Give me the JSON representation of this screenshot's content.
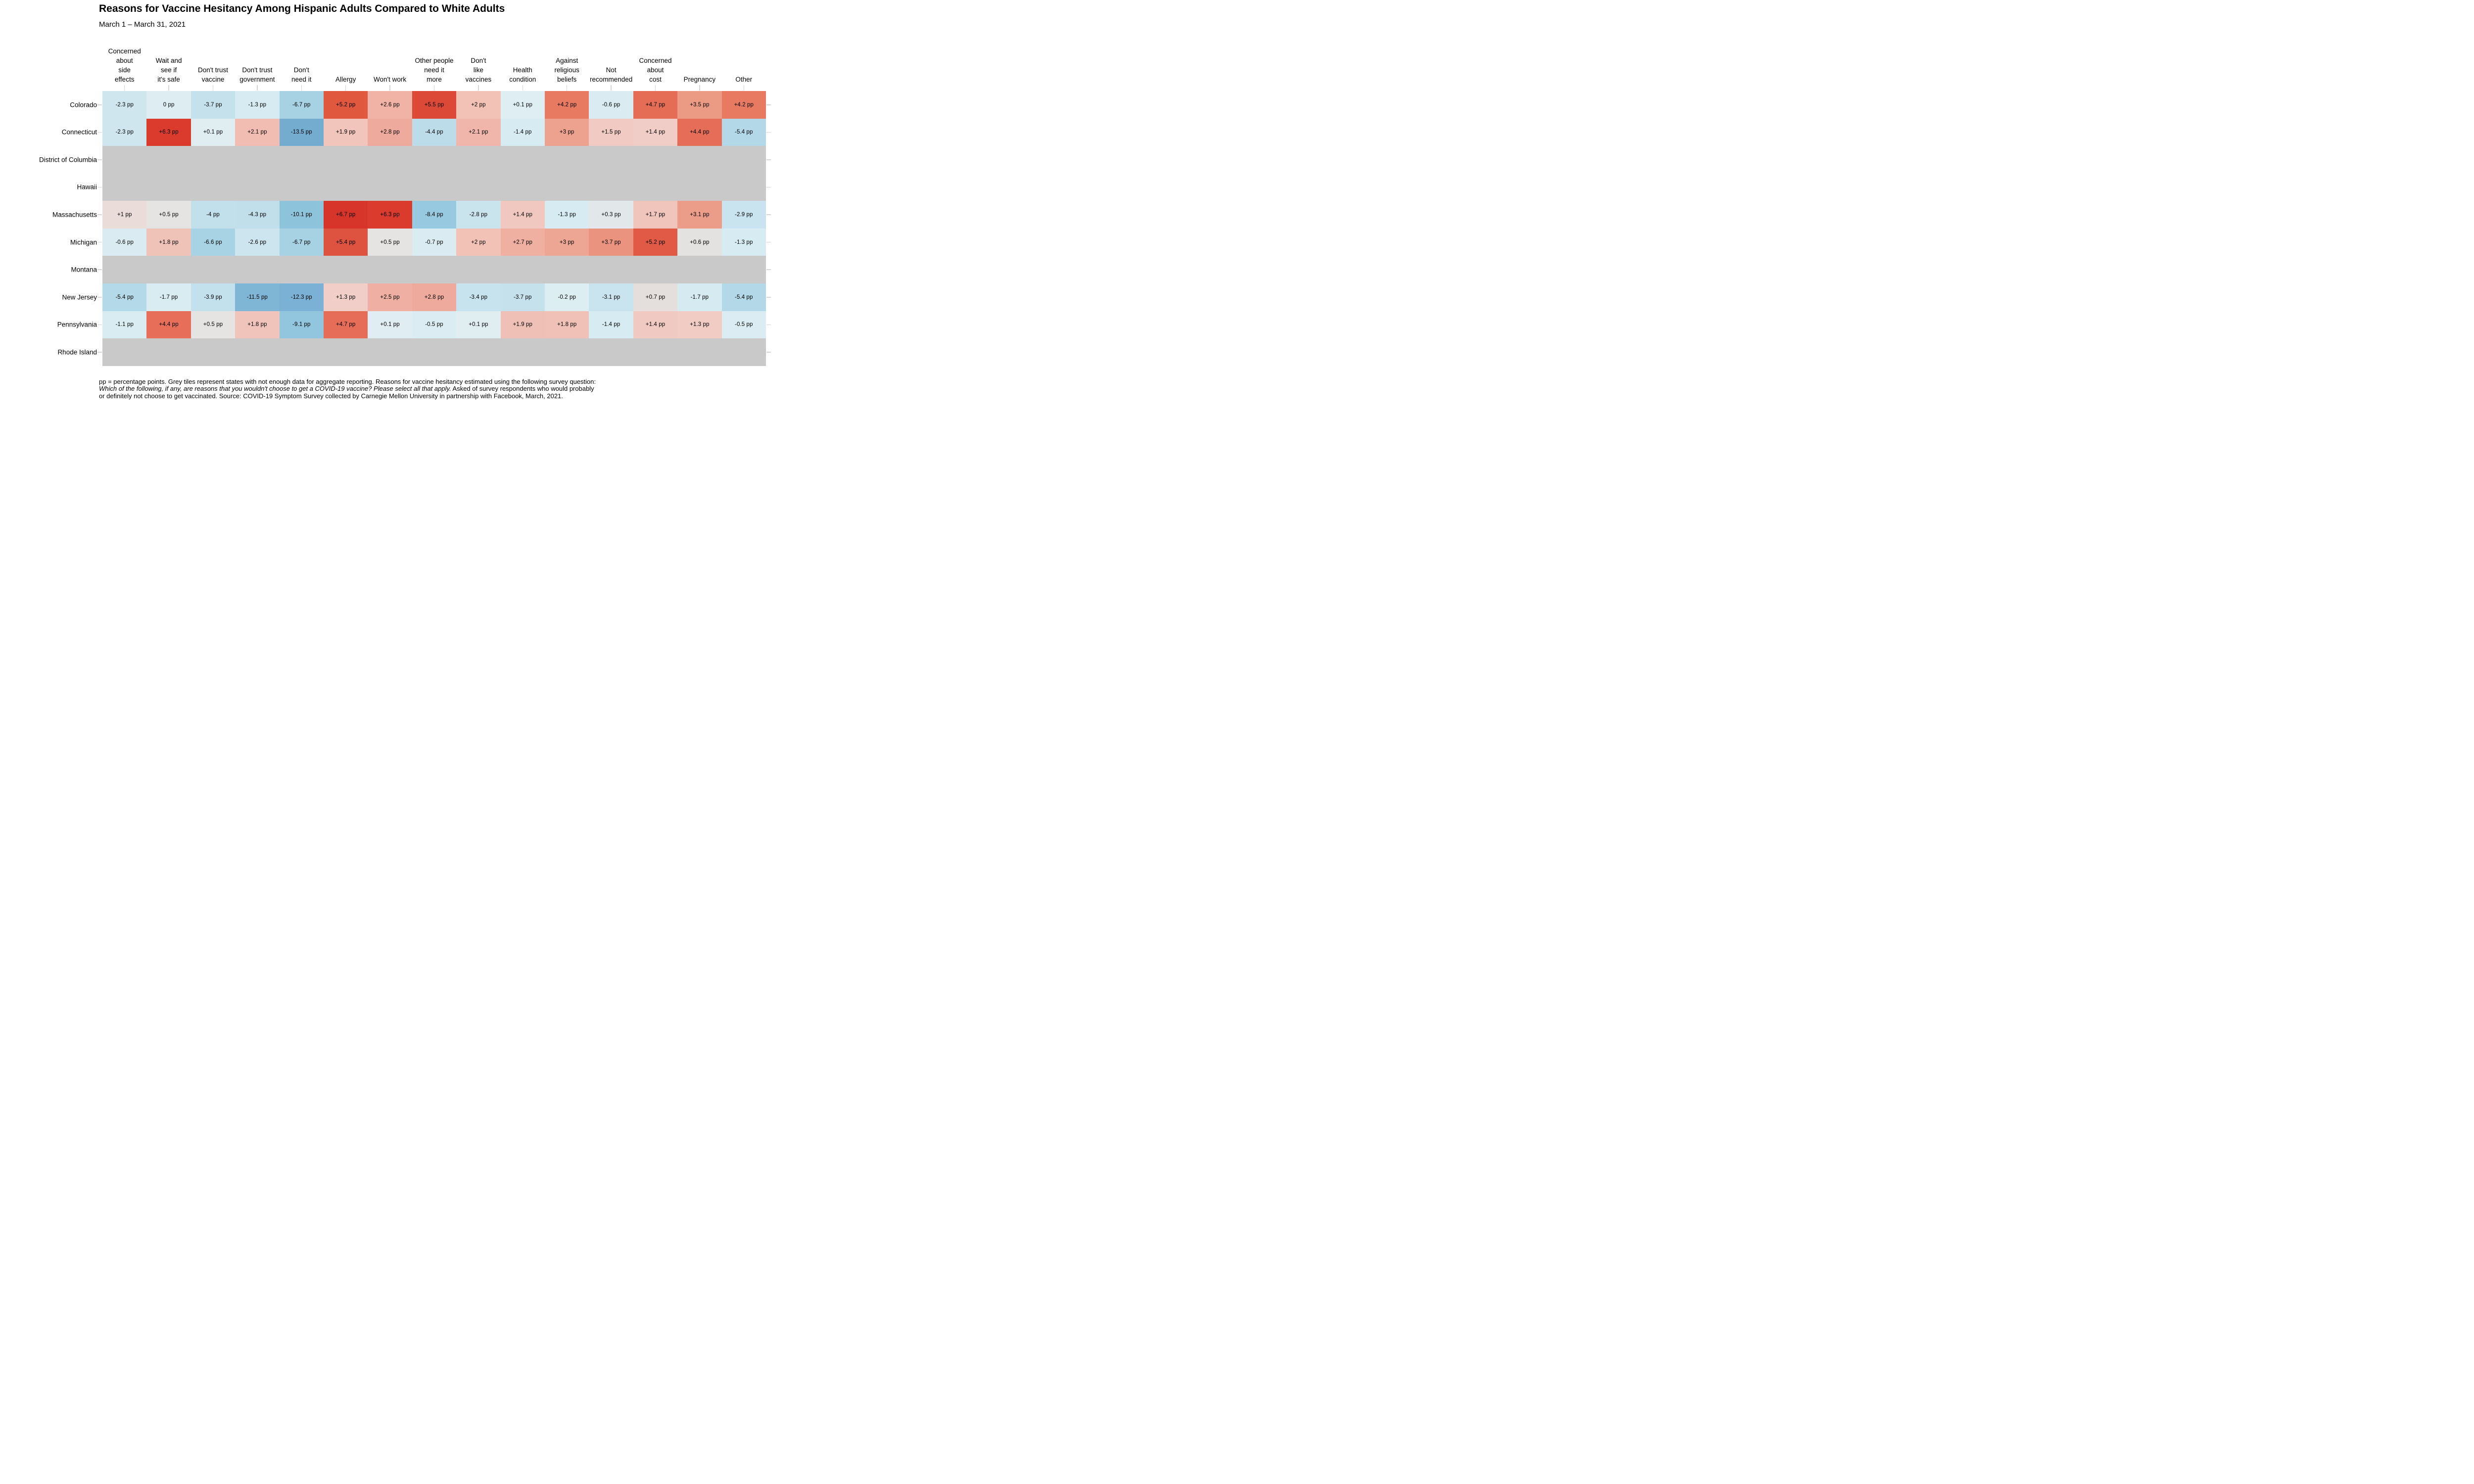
{
  "chart_data": {
    "type": "heatmap",
    "title": "Reasons for Vaccine Hesitancy Among Hispanic Adults Compared to White Adults",
    "subtitle": "March 1 – March 31, 2021",
    "unit": "pp",
    "legend_position": "none",
    "grid": "ticks-only",
    "columns": [
      "Concerned about side effects",
      "Wait and see if it's safe",
      "Don't trust vaccine",
      "Don't trust government",
      "Don't need it",
      "Allergy",
      "Won't work",
      "Other people need it more",
      "Don't like vaccines",
      "Health condition",
      "Against religious beliefs",
      "Not recommended",
      "Concerned about cost",
      "Pregnancy",
      "Other"
    ],
    "column_lines": [
      [
        "Concerned",
        "about",
        "side",
        "effects"
      ],
      [
        "Wait and",
        "see if",
        "it's safe"
      ],
      [
        "Don't trust",
        "vaccine"
      ],
      [
        "Don't trust",
        "government"
      ],
      [
        "Don't",
        "need it"
      ],
      [
        "Allergy"
      ],
      [
        "Won't work"
      ],
      [
        "Other people",
        "need it",
        "more"
      ],
      [
        "Don't",
        "like",
        "vaccines"
      ],
      [
        "Health",
        "condition"
      ],
      [
        "Against",
        "religious",
        "beliefs"
      ],
      [
        "Not",
        "recommended"
      ],
      [
        "Concerned",
        "about",
        "cost"
      ],
      [
        "Pregnancy"
      ],
      [
        "Other"
      ]
    ],
    "rows": [
      {
        "state": "Colorado",
        "missing": false,
        "values": [
          -2.3,
          0,
          -3.7,
          -1.3,
          -6.7,
          5.2,
          2.6,
          5.5,
          2,
          0.1,
          4.2,
          -0.6,
          4.7,
          3.5,
          4.2
        ],
        "labels": [
          "-2.3 pp",
          "0 pp",
          "-3.7 pp",
          "-1.3 pp",
          "-6.7 pp",
          "+5.2 pp",
          "+2.6 pp",
          "+5.5 pp",
          "+2 pp",
          "+0.1 pp",
          "+4.2 pp",
          "-0.6 pp",
          "+4.7 pp",
          "+3.5 pp",
          "+4.2 pp"
        ],
        "colors": [
          "#cfe6ef",
          "#ddedf2",
          "#c4e1ec",
          "#d6ebf2",
          "#a6d2e4",
          "#e0593f",
          "#f0b3a6",
          "#dd4937",
          "#f2c2b6",
          "#deeef3",
          "#e87a62",
          "#daecf2",
          "#e66d55",
          "#eb9b84",
          "#e87a62"
        ]
      },
      {
        "state": "Connecticut",
        "missing": false,
        "values": [
          -2.3,
          6.3,
          0.1,
          2.1,
          -13.5,
          1.9,
          2.8,
          -4.4,
          2.1,
          -1.4,
          3,
          1.5,
          1.4,
          4.4,
          -5.4
        ],
        "labels": [
          "-2.3 pp",
          "+6.3 pp",
          "+0.1 pp",
          "+2.1 pp",
          "-13.5 pp",
          "+1.9 pp",
          "+2.8 pp",
          "-4.4 pp",
          "+2.1 pp",
          "-1.4 pp",
          "+3 pp",
          "+1.5 pp",
          "+1.4 pp",
          "+4.4 pp",
          "-5.4 pp"
        ],
        "colors": [
          "#cfe6ef",
          "#da3b2c",
          "#e0eef2",
          "#f1bcb1",
          "#74accf",
          "#f2c5bc",
          "#eeab9d",
          "#bcdcea",
          "#f0b6ab",
          "#d6ebf2",
          "#eda28f",
          "#f0cac3",
          "#f1cdc7",
          "#e66e58",
          "#b3d9e8"
        ]
      },
      {
        "state": "District of Columbia",
        "missing": true,
        "values": null,
        "labels": null,
        "colors": null
      },
      {
        "state": "Hawaii",
        "missing": true,
        "values": null,
        "labels": null,
        "colors": null
      },
      {
        "state": "Massachusetts",
        "missing": false,
        "values": [
          1,
          0.5,
          -4,
          -4.3,
          -10.1,
          6.7,
          6.3,
          -8.4,
          -2.8,
          1.4,
          -1.3,
          0.3,
          1.7,
          3.1,
          -2.9
        ],
        "labels": [
          "+1 pp",
          "+0.5 pp",
          "-4 pp",
          "-4.3 pp",
          "-10.1 pp",
          "+6.7 pp",
          "+6.3 pp",
          "-8.4 pp",
          "-2.8 pp",
          "+1.4 pp",
          "-1.3 pp",
          "+0.3 pp",
          "+1.7 pp",
          "+3.1 pp",
          "-2.9 pp"
        ],
        "colors": [
          "#eadcd8",
          "#e5e4e3",
          "#c2e0eb",
          "#c0dfeb",
          "#8ec3dc",
          "#d8352a",
          "#da3b2c",
          "#97c9e0",
          "#cae4ee",
          "#f1c8c0",
          "#d6ebf2",
          "#e2e8e9",
          "#efc5bc",
          "#ec9d89",
          "#c9e4ee"
        ]
      },
      {
        "state": "Michigan",
        "missing": false,
        "values": [
          -0.6,
          1.8,
          -6.6,
          -2.6,
          -6.7,
          5.4,
          0.5,
          -0.7,
          2,
          2.7,
          3,
          3.7,
          5.2,
          0.6,
          -1.3
        ],
        "labels": [
          "-0.6 pp",
          "+1.8 pp",
          "-6.6 pp",
          "-2.6 pp",
          "-6.7 pp",
          "+5.4 pp",
          "+0.5 pp",
          "-0.7 pp",
          "+2 pp",
          "+2.7 pp",
          "+3 pp",
          "+3.7 pp",
          "+5.2 pp",
          "+0.6 pp",
          "-1.3 pp"
        ],
        "colors": [
          "#daecf2",
          "#f0c3b9",
          "#a7d3e4",
          "#cce5ee",
          "#a6d2e4",
          "#de5340",
          "#e5e4e3",
          "#daecf2",
          "#f2c2b6",
          "#efb0a2",
          "#eda693",
          "#ea947f",
          "#e05a45",
          "#e3e2e1",
          "#d7ebf2"
        ]
      },
      {
        "state": "Montana",
        "missing": true,
        "values": null,
        "labels": null,
        "colors": null
      },
      {
        "state": "New Jersey",
        "missing": false,
        "values": [
          -5.4,
          -1.7,
          -3.9,
          -11.5,
          -12.3,
          1.3,
          2.5,
          2.8,
          -3.4,
          -3.7,
          -0.2,
          -3.1,
          0.7,
          -1.7,
          -5.4
        ],
        "labels": [
          "-5.4 pp",
          "-1.7 pp",
          "-3.9 pp",
          "-11.5 pp",
          "-12.3 pp",
          "+1.3 pp",
          "+2.5 pp",
          "+2.8 pp",
          "-3.4 pp",
          "-3.7 pp",
          "-0.2 pp",
          "-3.1 pp",
          "+0.7 pp",
          "-1.7 pp",
          "-5.4 pp"
        ],
        "colors": [
          "#b4d9e8",
          "#d9ecf2",
          "#c3e1ec",
          "#7fb6d6",
          "#7ab1d4",
          "#f1cec8",
          "#efafa2",
          "#eeab9d",
          "#c7e3ed",
          "#c4e1ec",
          "#ddeef3",
          "#c9e4ee",
          "#e4dfdc",
          "#d5eaf1",
          "#b3d8e7"
        ]
      },
      {
        "state": "Pennsylvania",
        "missing": false,
        "values": [
          -1.1,
          4.4,
          0.5,
          1.8,
          -9.1,
          4.7,
          0.1,
          -0.5,
          0.1,
          1.9,
          1.8,
          -1.4,
          1.4,
          1.3,
          -0.5
        ],
        "labels": [
          "-1.1 pp",
          "+4.4 pp",
          "+0.5 pp",
          "+1.8 pp",
          "-9.1 pp",
          "+4.7 pp",
          "+0.1 pp",
          "-0.5 pp",
          "+0.1 pp",
          "+1.9 pp",
          "+1.8 pp",
          "-1.4 pp",
          "+1.4 pp",
          "+1.3 pp",
          "-0.5 pp"
        ],
        "colors": [
          "#d8ecf2",
          "#e76e58",
          "#e5e4e3",
          "#f0c4ba",
          "#92c6de",
          "#e66d57",
          "#e0eef3",
          "#dbedf2",
          "#e0eef2",
          "#efc0b6",
          "#f0c1b7",
          "#d6ebf2",
          "#f0c9c2",
          "#f1ccc5",
          "#dbedf2"
        ]
      },
      {
        "state": "Rhode Island",
        "missing": true,
        "values": null,
        "labels": null,
        "colors": null
      }
    ]
  },
  "footnote": {
    "line1": "pp = percentage points. Grey tiles represent states with not enough data for aggregate reporting. Reasons for vaccine hesitancy estimated using the following survey question:",
    "line2_italic": "Which of the following, if any, are reasons that you wouldn't choose to get a COVID-19 vaccine? Please select all that apply.",
    "line2_regular": " Asked of survey respondents who would probably",
    "line3": "or definitely not choose to get vaccinated. Source: COVID-19 Symptom Survey collected by Carnegie Mellon University in partnership with Facebook, March, 2021."
  },
  "colors": {
    "missing_tile": "#c9c9c9",
    "tick": "#d6d6d6",
    "background": "#ffffff",
    "text": "#000000",
    "max_positive": "#d8352a",
    "max_negative": "#74accf",
    "neutral": "#e5e4e3"
  }
}
